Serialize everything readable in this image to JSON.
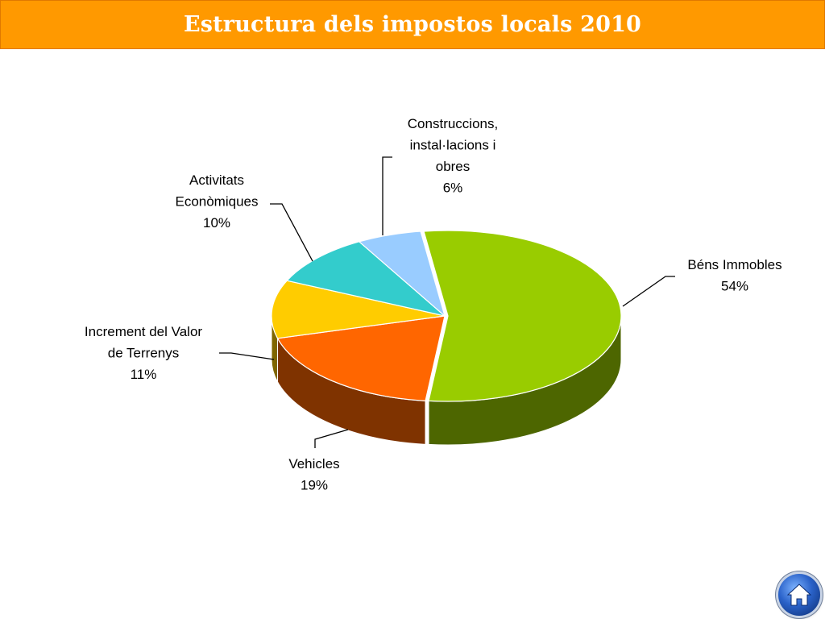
{
  "header": {
    "title": "Estructura dels impostos locals 2010"
  },
  "chart_data": {
    "type": "pie",
    "style": "3d-exploded",
    "title": "Estructura dels impostos locals 2010",
    "slices": [
      {
        "label_lines": [
          "Béns Immobles"
        ],
        "percent_label": "54%",
        "value": 54,
        "color": "#99cc00",
        "side_color": "#4d6600"
      },
      {
        "label_lines": [
          "Vehicles"
        ],
        "percent_label": "19%",
        "value": 19,
        "color": "#ff6600",
        "side_color": "#7f3300"
      },
      {
        "label_lines": [
          "Increment del Valor",
          "de Terrenys"
        ],
        "percent_label": "11%",
        "value": 11,
        "color": "#ffcc00",
        "side_color": "#7f6600"
      },
      {
        "label_lines": [
          "Activitats",
          "Econòmiques"
        ],
        "percent_label": "10%",
        "value": 10,
        "color": "#33cccc",
        "side_color": "#196666"
      },
      {
        "label_lines": [
          "Construccions,",
          "instal·lacions i",
          "obres"
        ],
        "percent_label": "6%",
        "value": 6,
        "color": "#99ccff",
        "side_color": "#4c6680"
      }
    ]
  },
  "nav": {
    "home_icon": "home-icon"
  }
}
